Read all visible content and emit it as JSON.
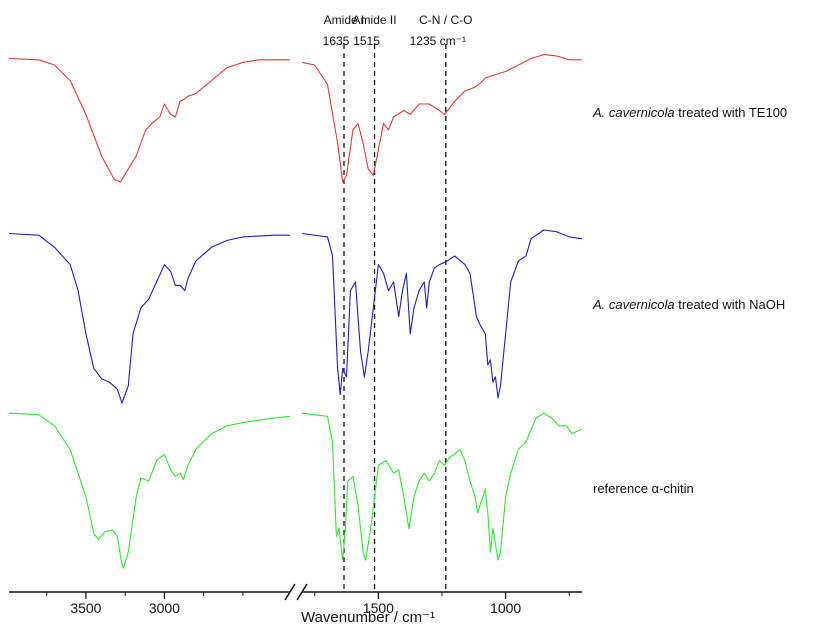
{
  "chart_data": {
    "type": "line",
    "xlabel": "Wavenumber / cm⁻¹",
    "x_axis": {
      "reversed": true,
      "break_between": [
        2200,
        1800
      ],
      "ticks": [
        {
          "value": 3500,
          "label": "3500"
        },
        {
          "value": 3000,
          "label": "3000"
        },
        {
          "value": 1500,
          "label": "1500"
        },
        {
          "value": 1000,
          "label": "1000"
        }
      ]
    },
    "markers": [
      {
        "x": 1635,
        "name": "Amide I",
        "value_label": "1635"
      },
      {
        "x": 1515,
        "name": "Amide II",
        "value_label": "1515"
      },
      {
        "x": 1235,
        "name": "C-N / C-O",
        "value_label": "1235 cm⁻¹"
      }
    ],
    "series": [
      {
        "name_italic": "A. cavernicola",
        "name_rest": " treated with TE100",
        "color": "#e53935",
        "points": [
          [
            3990,
            0.05
          ],
          [
            3800,
            0.06
          ],
          [
            3700,
            0.1
          ],
          [
            3600,
            0.22
          ],
          [
            3500,
            0.48
          ],
          [
            3400,
            0.8
          ],
          [
            3320,
            0.98
          ],
          [
            3280,
            1.0
          ],
          [
            3230,
            0.9
          ],
          [
            3180,
            0.8
          ],
          [
            3120,
            0.6
          ],
          [
            3070,
            0.54
          ],
          [
            3030,
            0.5
          ],
          [
            3000,
            0.4
          ],
          [
            2960,
            0.48
          ],
          [
            2930,
            0.5
          ],
          [
            2900,
            0.38
          ],
          [
            2870,
            0.36
          ],
          [
            2850,
            0.34
          ],
          [
            2800,
            0.32
          ],
          [
            2700,
            0.22
          ],
          [
            2600,
            0.12
          ],
          [
            2500,
            0.08
          ],
          [
            2400,
            0.06
          ],
          [
            2300,
            0.06
          ],
          [
            2200,
            0.06
          ],
          [
            1800,
            0.08
          ],
          [
            1750,
            0.1
          ],
          [
            1700,
            0.25
          ],
          [
            1660,
            0.7
          ],
          [
            1640,
            1.0
          ],
          [
            1625,
            0.95
          ],
          [
            1600,
            0.6
          ],
          [
            1580,
            0.55
          ],
          [
            1560,
            0.7
          ],
          [
            1540,
            0.9
          ],
          [
            1520,
            0.95
          ],
          [
            1500,
            0.75
          ],
          [
            1480,
            0.55
          ],
          [
            1460,
            0.6
          ],
          [
            1440,
            0.5
          ],
          [
            1400,
            0.45
          ],
          [
            1375,
            0.48
          ],
          [
            1340,
            0.4
          ],
          [
            1300,
            0.4
          ],
          [
            1260,
            0.45
          ],
          [
            1240,
            0.48
          ],
          [
            1200,
            0.38
          ],
          [
            1160,
            0.3
          ],
          [
            1120,
            0.27
          ],
          [
            1100,
            0.24
          ],
          [
            1080,
            0.2
          ],
          [
            1050,
            0.18
          ],
          [
            1000,
            0.15
          ],
          [
            950,
            0.1
          ],
          [
            900,
            0.05
          ],
          [
            850,
            0.02
          ],
          [
            800,
            0.03
          ],
          [
            750,
            0.06
          ],
          [
            700,
            0.06
          ]
        ]
      },
      {
        "name_italic": "A. cavernicola",
        "name_rest": " treated with NaOH",
        "color": "#1e1ebf",
        "points": [
          [
            3990,
            0.02
          ],
          [
            3800,
            0.03
          ],
          [
            3700,
            0.1
          ],
          [
            3600,
            0.2
          ],
          [
            3550,
            0.35
          ],
          [
            3500,
            0.6
          ],
          [
            3450,
            0.8
          ],
          [
            3400,
            0.86
          ],
          [
            3350,
            0.88
          ],
          [
            3300,
            0.92
          ],
          [
            3270,
            1.0
          ],
          [
            3230,
            0.9
          ],
          [
            3200,
            0.6
          ],
          [
            3150,
            0.45
          ],
          [
            3100,
            0.4
          ],
          [
            3050,
            0.3
          ],
          [
            3000,
            0.2
          ],
          [
            2960,
            0.24
          ],
          [
            2930,
            0.32
          ],
          [
            2900,
            0.32
          ],
          [
            2870,
            0.35
          ],
          [
            2850,
            0.28
          ],
          [
            2800,
            0.18
          ],
          [
            2700,
            0.1
          ],
          [
            2600,
            0.06
          ],
          [
            2500,
            0.04
          ],
          [
            2300,
            0.03
          ],
          [
            2200,
            0.03
          ],
          [
            1800,
            0.02
          ],
          [
            1700,
            0.04
          ],
          [
            1680,
            0.15
          ],
          [
            1660,
            0.8
          ],
          [
            1650,
            0.95
          ],
          [
            1640,
            0.8
          ],
          [
            1625,
            0.85
          ],
          [
            1610,
            0.35
          ],
          [
            1590,
            0.3
          ],
          [
            1570,
            0.7
          ],
          [
            1555,
            0.85
          ],
          [
            1540,
            0.7
          ],
          [
            1520,
            0.45
          ],
          [
            1500,
            0.2
          ],
          [
            1480,
            0.25
          ],
          [
            1460,
            0.35
          ],
          [
            1440,
            0.3
          ],
          [
            1420,
            0.5
          ],
          [
            1405,
            0.35
          ],
          [
            1390,
            0.25
          ],
          [
            1375,
            0.6
          ],
          [
            1360,
            0.45
          ],
          [
            1340,
            0.35
          ],
          [
            1320,
            0.3
          ],
          [
            1310,
            0.45
          ],
          [
            1300,
            0.3
          ],
          [
            1280,
            0.22
          ],
          [
            1260,
            0.2
          ],
          [
            1230,
            0.18
          ],
          [
            1200,
            0.15
          ],
          [
            1160,
            0.2
          ],
          [
            1140,
            0.25
          ],
          [
            1115,
            0.5
          ],
          [
            1100,
            0.55
          ],
          [
            1080,
            0.6
          ],
          [
            1070,
            0.78
          ],
          [
            1060,
            0.75
          ],
          [
            1050,
            0.88
          ],
          [
            1040,
            0.85
          ],
          [
            1030,
            0.97
          ],
          [
            1020,
            0.9
          ],
          [
            1000,
            0.6
          ],
          [
            980,
            0.3
          ],
          [
            950,
            0.18
          ],
          [
            920,
            0.15
          ],
          [
            900,
            0.05
          ],
          [
            850,
            0.0
          ],
          [
            800,
            0.01
          ],
          [
            750,
            0.04
          ],
          [
            700,
            0.05
          ]
        ]
      },
      {
        "name_prefix": "reference ",
        "name_greek": "α",
        "name_rest": "-chitin",
        "color": "#2ee82e",
        "points": [
          [
            3990,
            0.02
          ],
          [
            3800,
            0.03
          ],
          [
            3700,
            0.1
          ],
          [
            3600,
            0.25
          ],
          [
            3500,
            0.55
          ],
          [
            3450,
            0.78
          ],
          [
            3420,
            0.82
          ],
          [
            3380,
            0.77
          ],
          [
            3330,
            0.76
          ],
          [
            3300,
            0.8
          ],
          [
            3270,
            0.98
          ],
          [
            3260,
            1.0
          ],
          [
            3230,
            0.9
          ],
          [
            3180,
            0.55
          ],
          [
            3150,
            0.43
          ],
          [
            3100,
            0.45
          ],
          [
            3050,
            0.32
          ],
          [
            3000,
            0.28
          ],
          [
            2960,
            0.38
          ],
          [
            2930,
            0.42
          ],
          [
            2900,
            0.4
          ],
          [
            2880,
            0.44
          ],
          [
            2850,
            0.35
          ],
          [
            2800,
            0.25
          ],
          [
            2700,
            0.15
          ],
          [
            2600,
            0.1
          ],
          [
            2500,
            0.08
          ],
          [
            2300,
            0.05
          ],
          [
            2200,
            0.04
          ],
          [
            1800,
            0.02
          ],
          [
            1700,
            0.04
          ],
          [
            1680,
            0.2
          ],
          [
            1665,
            0.8
          ],
          [
            1655,
            0.75
          ],
          [
            1640,
            0.95
          ],
          [
            1630,
            0.75
          ],
          [
            1620,
            0.45
          ],
          [
            1600,
            0.42
          ],
          [
            1580,
            0.6
          ],
          [
            1560,
            0.9
          ],
          [
            1550,
            0.95
          ],
          [
            1530,
            0.75
          ],
          [
            1500,
            0.35
          ],
          [
            1470,
            0.32
          ],
          [
            1440,
            0.4
          ],
          [
            1420,
            0.38
          ],
          [
            1400,
            0.55
          ],
          [
            1380,
            0.75
          ],
          [
            1360,
            0.55
          ],
          [
            1340,
            0.45
          ],
          [
            1320,
            0.4
          ],
          [
            1300,
            0.45
          ],
          [
            1280,
            0.4
          ],
          [
            1260,
            0.32
          ],
          [
            1240,
            0.35
          ],
          [
            1220,
            0.3
          ],
          [
            1200,
            0.28
          ],
          [
            1180,
            0.25
          ],
          [
            1160,
            0.32
          ],
          [
            1140,
            0.45
          ],
          [
            1120,
            0.55
          ],
          [
            1110,
            0.65
          ],
          [
            1080,
            0.5
          ],
          [
            1070,
            0.65
          ],
          [
            1060,
            0.9
          ],
          [
            1050,
            0.75
          ],
          [
            1040,
            0.85
          ],
          [
            1030,
            0.95
          ],
          [
            1020,
            0.9
          ],
          [
            1000,
            0.55
          ],
          [
            980,
            0.4
          ],
          [
            950,
            0.25
          ],
          [
            920,
            0.2
          ],
          [
            880,
            0.05
          ],
          [
            850,
            0.02
          ],
          [
            820,
            0.05
          ],
          [
            790,
            0.1
          ],
          [
            760,
            0.1
          ],
          [
            740,
            0.15
          ],
          [
            700,
            0.12
          ]
        ]
      }
    ]
  }
}
